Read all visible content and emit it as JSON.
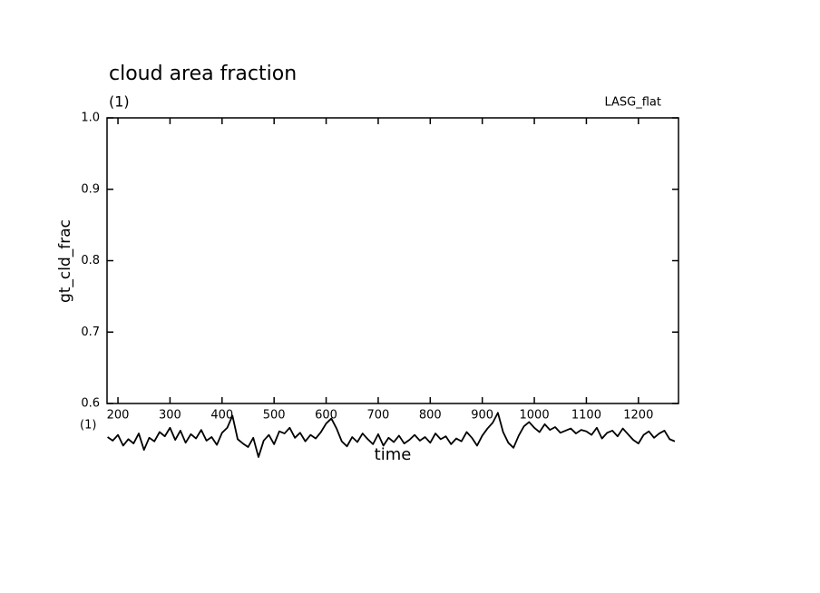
{
  "chart_data": {
    "type": "line",
    "title": "cloud area fraction",
    "subtitle": "(1)",
    "annotation": "LASG_flat",
    "x_unit": "(1)",
    "x_label": "time",
    "y_label": "gt_cld_frac",
    "xlim": [
      179,
      1277
    ],
    "ylim": [
      0.6,
      1.0
    ],
    "xticks": [
      200,
      300,
      400,
      500,
      600,
      700,
      800,
      900,
      1000,
      1100,
      1200
    ],
    "yticks": [
      0.6,
      0.7,
      0.8,
      0.9,
      {
        "value": 1,
        "label": "1.0"
      }
    ],
    "color": "#000000",
    "x": [
      180,
      190,
      200,
      210,
      220,
      230,
      240,
      250,
      260,
      270,
      280,
      290,
      300,
      310,
      320,
      330,
      340,
      350,
      360,
      370,
      380,
      390,
      400,
      410,
      420,
      430,
      440,
      450,
      460,
      470,
      480,
      490,
      500,
      510,
      520,
      530,
      540,
      550,
      560,
      570,
      580,
      590,
      600,
      610,
      620,
      630,
      640,
      650,
      660,
      670,
      680,
      690,
      700,
      710,
      720,
      730,
      740,
      750,
      760,
      770,
      780,
      790,
      800,
      810,
      820,
      830,
      840,
      850,
      860,
      870,
      880,
      890,
      900,
      910,
      920,
      930,
      940,
      950,
      960,
      970,
      980,
      990,
      1000,
      1010,
      1020,
      1030,
      1040,
      1050,
      1060,
      1070,
      1080,
      1090,
      1100,
      1110,
      1120,
      1130,
      1140,
      1150,
      1160,
      1170,
      1180,
      1190,
      1200,
      1210,
      1220,
      1230,
      1240,
      1250,
      1260,
      1270
    ],
    "values": [
      0.553,
      0.548,
      0.556,
      0.541,
      0.55,
      0.544,
      0.558,
      0.535,
      0.552,
      0.547,
      0.56,
      0.554,
      0.566,
      0.549,
      0.562,
      0.545,
      0.557,
      0.551,
      0.563,
      0.548,
      0.553,
      0.542,
      0.559,
      0.566,
      0.583,
      0.55,
      0.544,
      0.539,
      0.552,
      0.525,
      0.548,
      0.556,
      0.543,
      0.561,
      0.558,
      0.566,
      0.552,
      0.559,
      0.547,
      0.556,
      0.551,
      0.56,
      0.572,
      0.579,
      0.565,
      0.547,
      0.54,
      0.553,
      0.546,
      0.558,
      0.55,
      0.543,
      0.557,
      0.541,
      0.552,
      0.546,
      0.555,
      0.544,
      0.549,
      0.556,
      0.548,
      0.553,
      0.545,
      0.558,
      0.55,
      0.554,
      0.543,
      0.551,
      0.547,
      0.56,
      0.552,
      0.541,
      0.555,
      0.565,
      0.573,
      0.587,
      0.56,
      0.545,
      0.538,
      0.555,
      0.568,
      0.574,
      0.566,
      0.56,
      0.571,
      0.563,
      0.567,
      0.559,
      0.562,
      0.565,
      0.558,
      0.563,
      0.561,
      0.556,
      0.566,
      0.551,
      0.559,
      0.562,
      0.554,
      0.565,
      0.557,
      0.549,
      0.544,
      0.556,
      0.561,
      0.552,
      0.558,
      0.562,
      0.55,
      0.547
    ]
  }
}
